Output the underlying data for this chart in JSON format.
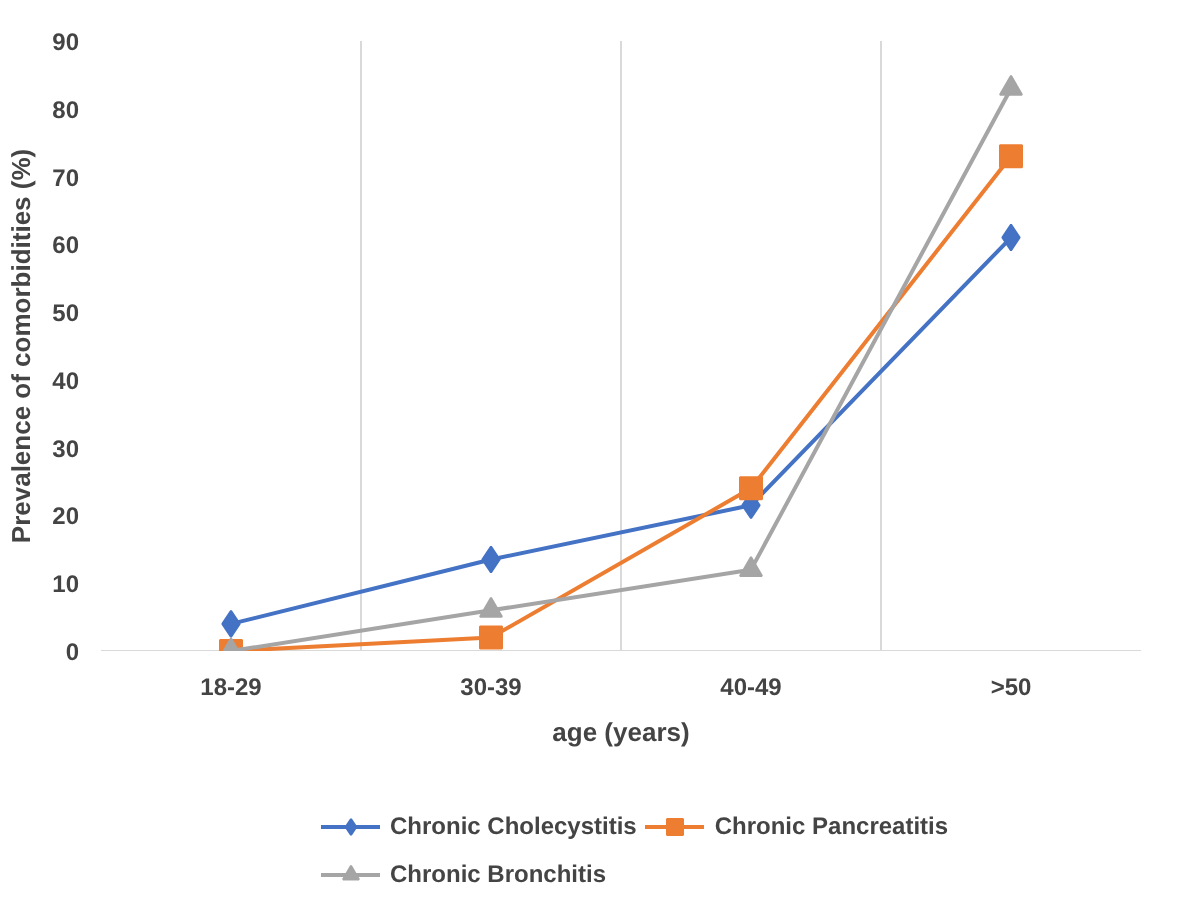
{
  "chart_data": {
    "type": "line",
    "xlabel": "age (years)",
    "ylabel": "Prevalence of comorbidities (%)",
    "categories": [
      "18-29",
      "30-39",
      "40-49",
      ">50"
    ],
    "series": [
      {
        "name": "Chronic Cholecystitis",
        "color": "#4472c4",
        "marker": "diamond",
        "values": [
          4,
          13.5,
          21.5,
          61
        ]
      },
      {
        "name": "Chronic Pancreatitis",
        "color": "#ed7d31",
        "marker": "square",
        "values": [
          0,
          2,
          24,
          73
        ]
      },
      {
        "name": "Chronic Bronchitis",
        "color": "#a5a5a5",
        "marker": "triangle",
        "values": [
          0,
          6,
          12,
          83
        ]
      }
    ],
    "ylim": [
      0,
      90
    ],
    "yticks": [
      0,
      10,
      20,
      30,
      40,
      50,
      60,
      70,
      80,
      90
    ],
    "grid": "x",
    "legend": "bottom",
    "line_style": "solid"
  }
}
